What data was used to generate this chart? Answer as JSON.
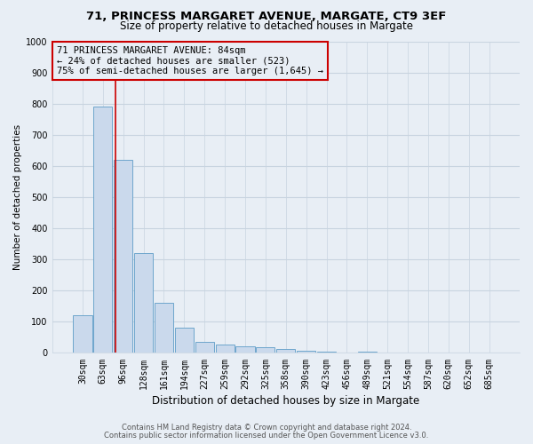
{
  "title1": "71, PRINCESS MARGARET AVENUE, MARGATE, CT9 3EF",
  "title2": "Size of property relative to detached houses in Margate",
  "xlabel": "Distribution of detached houses by size in Margate",
  "ylabel": "Number of detached properties",
  "bar_labels": [
    "30sqm",
    "63sqm",
    "96sqm",
    "128sqm",
    "161sqm",
    "194sqm",
    "227sqm",
    "259sqm",
    "292sqm",
    "325sqm",
    "358sqm",
    "390sqm",
    "423sqm",
    "456sqm",
    "489sqm",
    "521sqm",
    "554sqm",
    "587sqm",
    "620sqm",
    "652sqm",
    "685sqm"
  ],
  "bar_values": [
    120,
    790,
    620,
    320,
    160,
    80,
    35,
    27,
    22,
    17,
    12,
    7,
    5,
    0,
    5,
    0,
    0,
    0,
    0,
    0,
    0
  ],
  "bar_color": "#cad9ec",
  "bar_edge_color": "#6ea6cc",
  "vline_color": "#cc0000",
  "ylim": [
    0,
    1000
  ],
  "yticks": [
    0,
    100,
    200,
    300,
    400,
    500,
    600,
    700,
    800,
    900,
    1000
  ],
  "annotation_line1": "71 PRINCESS MARGARET AVENUE: 84sqm",
  "annotation_line2": "← 24% of detached houses are smaller (523)",
  "annotation_line3": "75% of semi-detached houses are larger (1,645) →",
  "footer1": "Contains HM Land Registry data © Crown copyright and database right 2024.",
  "footer2": "Contains public sector information licensed under the Open Government Licence v3.0.",
  "background_color": "#e8eef5",
  "grid_color": "#c8d4e0",
  "title_fontsize": 9.5,
  "subtitle_fontsize": 8.5,
  "xlabel_fontsize": 8.5,
  "ylabel_fontsize": 7.5,
  "tick_fontsize": 7,
  "annotation_fontsize": 7.5,
  "footer_fontsize": 6
}
